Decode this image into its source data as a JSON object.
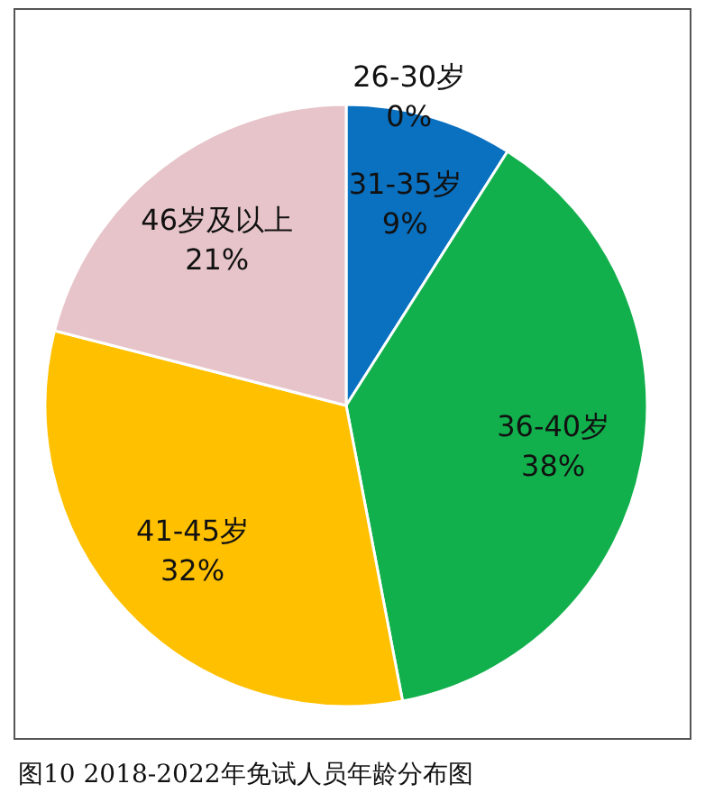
{
  "chart_data": {
    "type": "pie",
    "title": "图10  2018-2022年免试人员年龄分布图",
    "categories": [
      "26-30岁",
      "31-35岁",
      "36-40岁",
      "41-45岁",
      "46岁及以上"
    ],
    "values": [
      0,
      9,
      38,
      32,
      21
    ],
    "colors": [
      "#0a70c0",
      "#0a70c0",
      "#12b04c",
      "#ffc000",
      "#e6c4c9"
    ],
    "value_labels": [
      "0%",
      "9%",
      "38%",
      "32%",
      "21%"
    ]
  }
}
